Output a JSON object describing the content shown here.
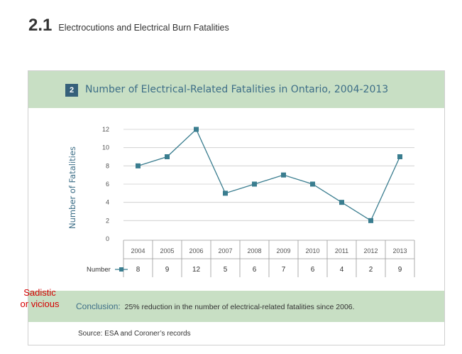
{
  "section": {
    "number": "2.1",
    "title": "Electrocutions and Electrical Burn Fatalities"
  },
  "figure": {
    "number": "2",
    "title": "Number of Electrical-Related Fatalities in Ontario, 2004-2013"
  },
  "chart_data": {
    "type": "line",
    "title": "Number of Electrical-Related Fatalities in Ontario, 2004-2013",
    "xlabel": "",
    "ylabel": "Number of Fatalities",
    "ylim": [
      0,
      12
    ],
    "yticks": [
      "0",
      "2",
      "4",
      "6",
      "8",
      "10",
      "12"
    ],
    "categories": [
      "2004",
      "2005",
      "2006",
      "2007",
      "2008",
      "2009",
      "2010",
      "2011",
      "2012",
      "2013"
    ],
    "series": [
      {
        "name": "Number",
        "values": [
          8,
          9,
          12,
          5,
          6,
          7,
          6,
          4,
          2,
          9
        ]
      }
    ],
    "series_color": "#3a7d8f",
    "grid": "horizontal",
    "data_table": true
  },
  "conclusion": {
    "label": "Conclusion:",
    "text": "25% reduction in the number of electrical-related fatalities since 2006."
  },
  "source": "Source: ESA and Coroner’s records",
  "annotation": {
    "line1": "Sadistic",
    "line2": "or vicious"
  },
  "colors": {
    "header_band": "#c8dfc4",
    "title_text": "#3d6e87",
    "figure_badge": "#35607a",
    "annotation": "#d40000"
  }
}
